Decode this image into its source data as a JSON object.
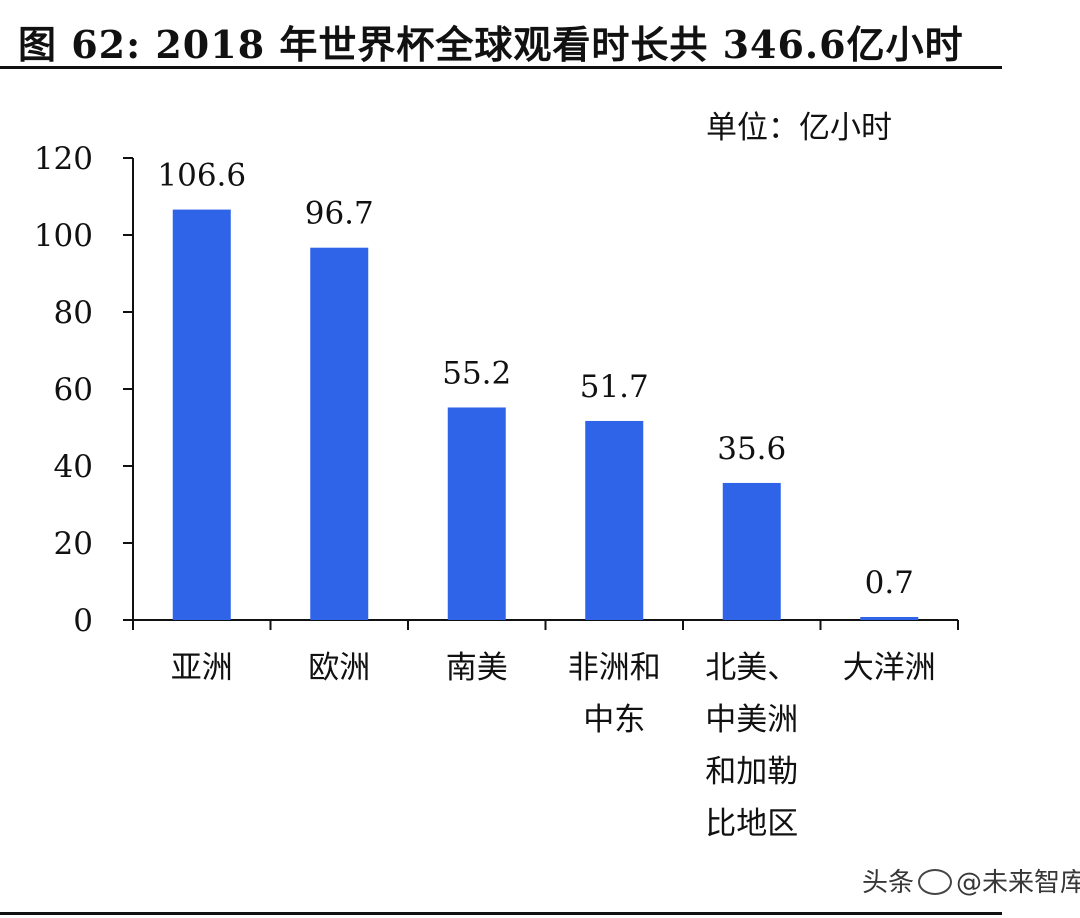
{
  "title": "图 62: 2018 年世界杯全球观看时长共 346.6亿小时",
  "unit_label": "单位：亿小时",
  "watermark": {
    "prefix": "头条",
    "account": "@未来智库"
  },
  "colors": {
    "bar": "#2f63e8",
    "axis": "#111111",
    "text": "#111111"
  },
  "chart_data": {
    "type": "bar",
    "title": "图 62: 2018 年世界杯全球观看时长共 346.6亿小时",
    "ylabel": "",
    "xlabel": "",
    "unit": "单位：亿小时",
    "ylim": [
      0,
      120
    ],
    "yticks": [
      0,
      20,
      40,
      60,
      80,
      100,
      120
    ],
    "categories": [
      [
        "亚洲"
      ],
      [
        "欧洲"
      ],
      [
        "南美"
      ],
      [
        "非洲和",
        "中东"
      ],
      [
        "北美、",
        "中美洲",
        "和加勒",
        "比地区"
      ],
      [
        "大洋洲"
      ]
    ],
    "values": [
      106.6,
      96.7,
      55.2,
      51.7,
      35.6,
      0.7
    ],
    "data_labels": [
      "106.6",
      "96.7",
      "55.2",
      "51.7",
      "35.6",
      "0.7"
    ],
    "grid": false,
    "legend": "none"
  }
}
